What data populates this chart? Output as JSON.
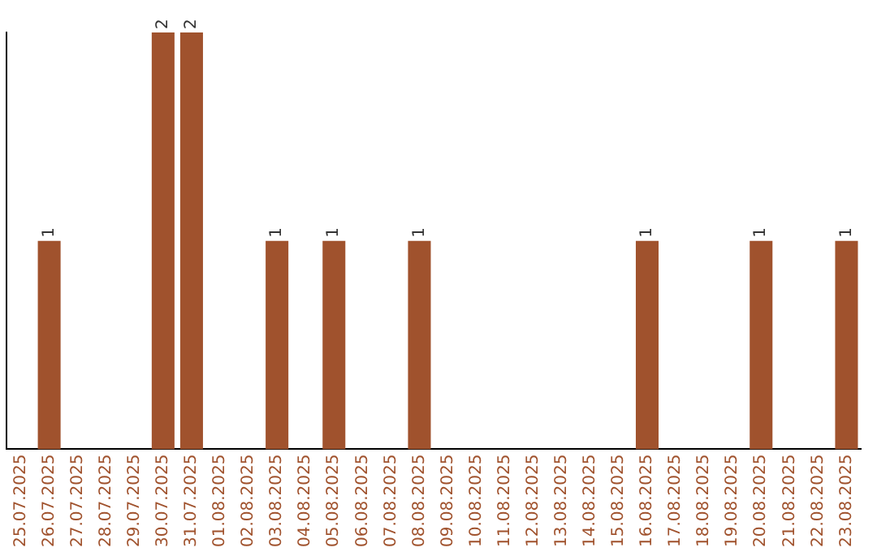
{
  "chart_data": {
    "type": "bar",
    "categories": [
      "25.07.2025",
      "26.07.2025",
      "27.07.2025",
      "28.07.2025",
      "29.07.2025",
      "30.07.2025",
      "31.07.2025",
      "01.08.2025",
      "02.08.2025",
      "03.08.2025",
      "04.08.2025",
      "05.08.2025",
      "06.08.2025",
      "07.08.2025",
      "08.08.2025",
      "09.08.2025",
      "10.08.2025",
      "11.08.2025",
      "12.08.2025",
      "13.08.2025",
      "14.08.2025",
      "15.08.2025",
      "16.08.2025",
      "17.08.2025",
      "18.08.2025",
      "19.08.2025",
      "20.08.2025",
      "21.08.2025",
      "22.08.2025",
      "23.08.2025"
    ],
    "values": [
      0,
      1,
      0,
      0,
      0,
      2,
      2,
      0,
      0,
      1,
      0,
      1,
      0,
      0,
      1,
      0,
      0,
      0,
      0,
      0,
      0,
      0,
      1,
      0,
      0,
      0,
      1,
      0,
      0,
      1
    ],
    "value_labels": [
      null,
      "1",
      null,
      null,
      null,
      "2",
      "2",
      null,
      null,
      "1",
      null,
      "1",
      null,
      null,
      "1",
      null,
      null,
      null,
      null,
      null,
      null,
      null,
      "1",
      null,
      null,
      null,
      "1",
      null,
      null,
      "1"
    ],
    "color": "#a0522d",
    "ylim": [
      0,
      2
    ],
    "tick_labels": "x",
    "grid": false,
    "legend": false
  }
}
